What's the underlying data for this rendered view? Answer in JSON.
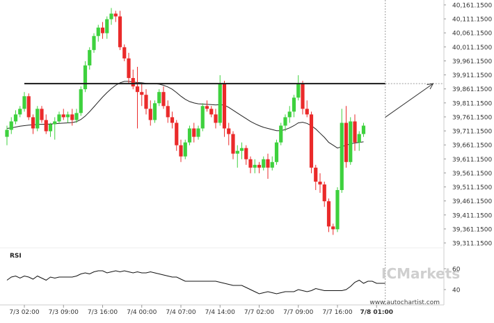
{
  "chart_data": {
    "type": "candlestick",
    "price_axis": {
      "ylim": [
        39290,
        40170
      ],
      "ticks": [
        "40,161.1500",
        "40,111.1500",
        "40,061.1500",
        "40,011.1500",
        "39,961.1500",
        "39,911.1500",
        "39,861.1500",
        "39,811.1500",
        "39,761.1500",
        "39,711.1500",
        "39,661.1500",
        "39,611.1500",
        "39,561.1500",
        "39,511.1500",
        "39,461.1500",
        "39,411.1500",
        "39,361.1500",
        "39,311.1500"
      ]
    },
    "x_axis": {
      "ticks": [
        {
          "i": 4,
          "label": "7/3 02:00",
          "bold": false
        },
        {
          "i": 13,
          "label": "7/3 09:00",
          "bold": false
        },
        {
          "i": 22,
          "label": "7/3 16:00",
          "bold": false
        },
        {
          "i": 31,
          "label": "7/4 00:00",
          "bold": false
        },
        {
          "i": 40,
          "label": "7/4 07:00",
          "bold": false
        },
        {
          "i": 49,
          "label": "7/4 14:00",
          "bold": false
        },
        {
          "i": 58,
          "label": "7/7 02:00",
          "bold": false
        },
        {
          "i": 67,
          "label": "7/7 09:00",
          "bold": false
        },
        {
          "i": 76,
          "label": "7/7 16:00",
          "bold": false
        },
        {
          "i": 85,
          "label": "7/8 01:00",
          "bold": true
        }
      ]
    },
    "candles": [
      [
        39690,
        39730,
        39660,
        39715
      ],
      [
        39715,
        39760,
        39700,
        39745
      ],
      [
        39745,
        39785,
        39735,
        39770
      ],
      [
        39770,
        39800,
        39760,
        39790
      ],
      [
        39790,
        39850,
        39780,
        39835
      ],
      [
        39835,
        39845,
        39750,
        39760
      ],
      [
        39760,
        39770,
        39700,
        39720
      ],
      [
        39720,
        39800,
        39710,
        39790
      ],
      [
        39790,
        39800,
        39740,
        39750
      ],
      [
        39750,
        39770,
        39700,
        39710
      ],
      [
        39710,
        39740,
        39690,
        39735
      ],
      [
        39735,
        39760,
        39680,
        39745
      ],
      [
        39745,
        39780,
        39740,
        39770
      ],
      [
        39770,
        39790,
        39750,
        39760
      ],
      [
        39760,
        39780,
        39740,
        39770
      ],
      [
        39770,
        39790,
        39730,
        39750
      ],
      [
        39750,
        39790,
        39740,
        39775
      ],
      [
        39775,
        39870,
        39765,
        39860
      ],
      [
        39860,
        39960,
        39850,
        39945
      ],
      [
        39945,
        40010,
        39930,
        40000
      ],
      [
        40000,
        40060,
        39990,
        40050
      ],
      [
        40050,
        40090,
        40030,
        40080
      ],
      [
        40080,
        40100,
        40040,
        40060
      ],
      [
        40060,
        40120,
        40040,
        40110
      ],
      [
        40110,
        40150,
        40090,
        40130
      ],
      [
        40130,
        40140,
        40100,
        40120
      ],
      [
        40120,
        40140,
        40000,
        40010
      ],
      [
        40010,
        40020,
        39960,
        39970
      ],
      [
        39970,
        39990,
        39880,
        39900
      ],
      [
        39900,
        39930,
        39860,
        39870
      ],
      [
        39870,
        39940,
        39720,
        39850
      ],
      [
        39850,
        39880,
        39800,
        39840
      ],
      [
        39840,
        39860,
        39770,
        39790
      ],
      [
        39790,
        39820,
        39730,
        39750
      ],
      [
        39750,
        39820,
        39740,
        39810
      ],
      [
        39810,
        39860,
        39800,
        39850
      ],
      [
        39850,
        39870,
        39790,
        39800
      ],
      [
        39800,
        39820,
        39740,
        39760
      ],
      [
        39760,
        39780,
        39720,
        39740
      ],
      [
        39740,
        39750,
        39640,
        39660
      ],
      [
        39660,
        39680,
        39600,
        39620
      ],
      [
        39620,
        39680,
        39610,
        39670
      ],
      [
        39670,
        39730,
        39660,
        39720
      ],
      [
        39720,
        39740,
        39670,
        39690
      ],
      [
        39690,
        39730,
        39680,
        39720
      ],
      [
        39720,
        39810,
        39710,
        39800
      ],
      [
        39800,
        39820,
        39780,
        39790
      ],
      [
        39790,
        39800,
        39760,
        39770
      ],
      [
        39770,
        39790,
        39720,
        39740
      ],
      [
        39740,
        39910,
        39730,
        39880
      ],
      [
        39880,
        39890,
        39690,
        39720
      ],
      [
        39720,
        39740,
        39660,
        39700
      ],
      [
        39700,
        39710,
        39610,
        39630
      ],
      [
        39630,
        39660,
        39580,
        39640
      ],
      [
        39640,
        39670,
        39610,
        39650
      ],
      [
        39650,
        39660,
        39590,
        39610
      ],
      [
        39610,
        39620,
        39560,
        39580
      ],
      [
        39580,
        39610,
        39560,
        39590
      ],
      [
        39590,
        39600,
        39560,
        39580
      ],
      [
        39580,
        39620,
        39570,
        39610
      ],
      [
        39610,
        39630,
        39540,
        39580
      ],
      [
        39580,
        39620,
        39570,
        39600
      ],
      [
        39600,
        39680,
        39590,
        39670
      ],
      [
        39670,
        39740,
        39660,
        39730
      ],
      [
        39730,
        39770,
        39710,
        39760
      ],
      [
        39760,
        39800,
        39740,
        39780
      ],
      [
        39780,
        39840,
        39760,
        39830
      ],
      [
        39830,
        39910,
        39820,
        39880
      ],
      [
        39880,
        39890,
        39770,
        39790
      ],
      [
        39790,
        39820,
        39760,
        39770
      ],
      [
        39770,
        39780,
        39560,
        39580
      ],
      [
        39580,
        39590,
        39500,
        39530
      ],
      [
        39530,
        39560,
        39490,
        39520
      ],
      [
        39520,
        39530,
        39440,
        39460
      ],
      [
        39460,
        39470,
        39350,
        39370
      ],
      [
        39370,
        39380,
        39340,
        39360
      ],
      [
        39360,
        39510,
        39350,
        39500
      ],
      [
        39500,
        39790,
        39490,
        39740
      ],
      [
        39740,
        39800,
        39580,
        39600
      ],
      [
        39600,
        39760,
        39590,
        39745
      ],
      [
        39745,
        39770,
        39640,
        39670
      ],
      [
        39670,
        39710,
        39640,
        39700
      ],
      [
        39700,
        39740,
        39690,
        39730
      ]
    ],
    "moving_average": [
      39720,
      39722,
      39725,
      39728,
      39730,
      39732,
      39733,
      39734,
      39735,
      39735,
      39736,
      39737,
      39738,
      39739,
      39740,
      39741,
      39744,
      39752,
      39764,
      39780,
      39797,
      39815,
      39832,
      39848,
      39862,
      39874,
      39883,
      39888,
      39888,
      39886,
      39884,
      39883,
      39881,
      39880,
      39880,
      39878,
      39874,
      39868,
      39860,
      39848,
      39835,
      39824,
      39816,
      39811,
      39808,
      39807,
      39806,
      39805,
      39804,
      39805,
      39803,
      39795,
      39785,
      39775,
      39765,
      39755,
      39745,
      39737,
      39730,
      39724,
      39720,
      39716,
      39712,
      39712,
      39716,
      39722,
      39730,
      39740,
      39742,
      39738,
      39730,
      39718,
      39703,
      39688,
      39670,
      39660,
      39650,
      39655,
      39660,
      39665,
      39668,
      39670,
      39672
    ],
    "resistance": {
      "value": 39880,
      "start_index": 4,
      "end_index": 87
    },
    "projection": {
      "from_index": 87,
      "from_value": 39760,
      "to_index": 98,
      "to_value": 39880
    },
    "now_index": 87,
    "indicator": {
      "name": "RSI",
      "ylim": [
        30,
        70
      ],
      "ticks": [
        "60",
        "40"
      ],
      "values": [
        49,
        52,
        53,
        51,
        53,
        52,
        50,
        53,
        51,
        49,
        52,
        51,
        52,
        52,
        52,
        52,
        53,
        55,
        56,
        55,
        57,
        58,
        58,
        56,
        57,
        58,
        57,
        58,
        57,
        56,
        57,
        56,
        56,
        57,
        56,
        55,
        54,
        53,
        52,
        52,
        50,
        48,
        48,
        48,
        48,
        48,
        48,
        48,
        48,
        47,
        46,
        45,
        44,
        44,
        44,
        42,
        40,
        38,
        36,
        37,
        38,
        37,
        36,
        37,
        38,
        38,
        38,
        40,
        39,
        38,
        39,
        41,
        40,
        39,
        39,
        39,
        39,
        39,
        40,
        43,
        47,
        49,
        46,
        48,
        48,
        46,
        46,
        46
      ],
      "watermark": "ICMarkets"
    },
    "site_label": "www.autochartist.com",
    "colors": {
      "bull": "#3ed13e",
      "bear": "#ea2a2a",
      "ma_line": "#222222",
      "resistance_line": "#1a1a1a",
      "grid_dashed": "#9a9a9a",
      "watermark": "#cfcfcf"
    }
  }
}
